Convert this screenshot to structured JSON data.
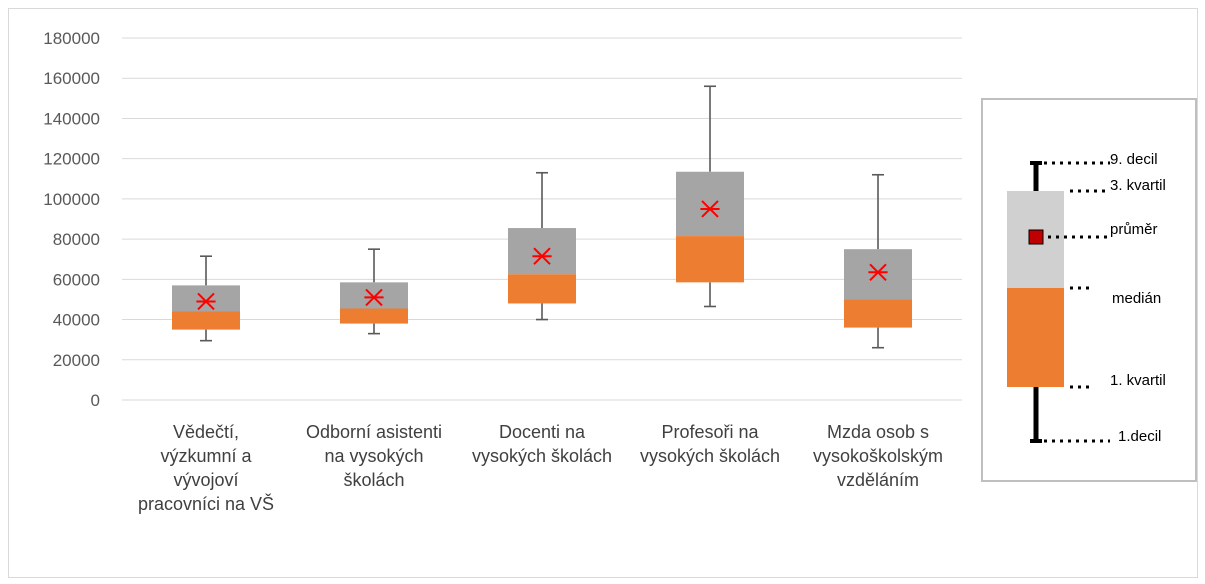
{
  "chart_data": {
    "type": "boxplot",
    "ylim": [
      0,
      180000
    ],
    "yticks": [
      0,
      20000,
      40000,
      60000,
      80000,
      100000,
      120000,
      140000,
      160000,
      180000
    ],
    "grid": true,
    "categories": [
      [
        "Vědečtí,",
        "výzkumní a",
        "vývojoví",
        "pracovníci na VŠ"
      ],
      [
        "Odborní asistenti",
        "na vysokých",
        "školách"
      ],
      [
        "Docenti na",
        "vysokých školách"
      ],
      [
        "Profesoři na",
        "vysokých školách"
      ],
      [
        "Mzda osob s",
        "vysokoškolským",
        "vzděláním"
      ]
    ],
    "stats": [
      {
        "decile1": 29500,
        "quartile1": 35000,
        "median": 44000,
        "quartile3": 57000,
        "decile9": 71500,
        "mean": 49000
      },
      {
        "decile1": 33000,
        "quartile1": 38000,
        "median": 45500,
        "quartile3": 58500,
        "decile9": 75000,
        "mean": 51000
      },
      {
        "decile1": 40000,
        "quartile1": 48000,
        "median": 62500,
        "quartile3": 85500,
        "decile9": 113000,
        "mean": 71500
      },
      {
        "decile1": 46500,
        "quartile1": 58500,
        "median": 81500,
        "quartile3": 113500,
        "decile9": 156000,
        "mean": 95000
      },
      {
        "decile1": 26000,
        "quartile1": 36000,
        "median": 50000,
        "quartile3": 75000,
        "decile9": 112000,
        "mean": 63500
      }
    ],
    "colors": {
      "lower_box": "#ed7d31",
      "upper_box": "#a5a5a5",
      "whisker": "#595959",
      "mean_marker": "#ff0000",
      "grid": "#d9d9d9",
      "legend_upper_box": "#d0d0d0",
      "legend_mean_fill": "#c00000"
    },
    "legend": {
      "placement": "right",
      "labels": {
        "decile9": "9. decil",
        "quartile3": "3. kvartil",
        "mean": "průměr",
        "median": "medián",
        "quartile1": "1. kvartil",
        "decile1": "1.decil"
      }
    }
  }
}
